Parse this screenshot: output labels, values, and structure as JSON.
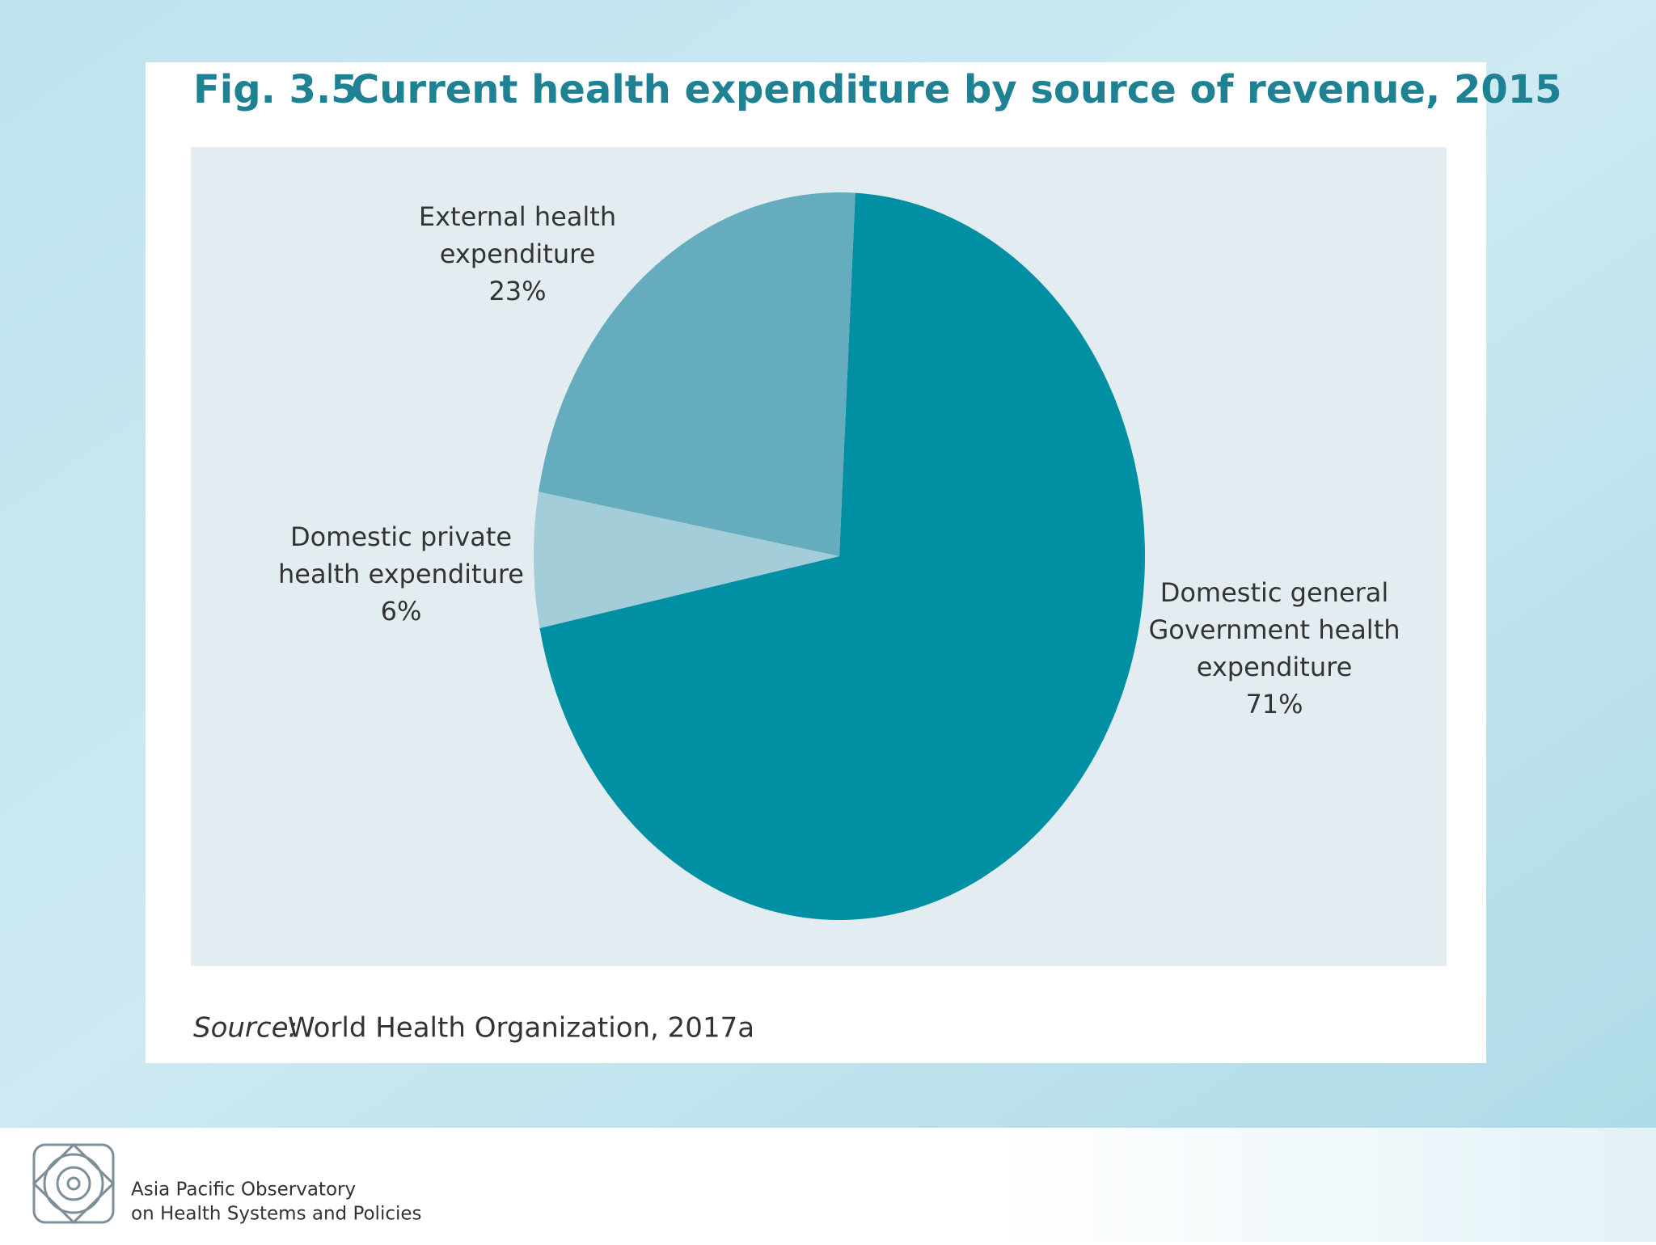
{
  "chart_data": {
    "type": "pie",
    "figure_number": "Fig. 3.5",
    "title": "Current health expenditure by source of revenue, 2015",
    "categories": [
      [
        "Domestic general",
        "Government health",
        "expenditure"
      ],
      [
        "Domestic private",
        "health expenditure"
      ],
      [
        "External health",
        "expenditure"
      ]
    ],
    "values": [
      71,
      6,
      23
    ],
    "value_labels": [
      "71%",
      "6%",
      "23%"
    ],
    "colors": [
      "#008fa3",
      "#a3cdd9",
      "#65acbe"
    ],
    "source_label": "Source:",
    "source": "World Health Organization, 2017a"
  },
  "footer": {
    "org": [
      "Asia Pacific Observatory",
      "on Health Systems and Policies"
    ]
  }
}
